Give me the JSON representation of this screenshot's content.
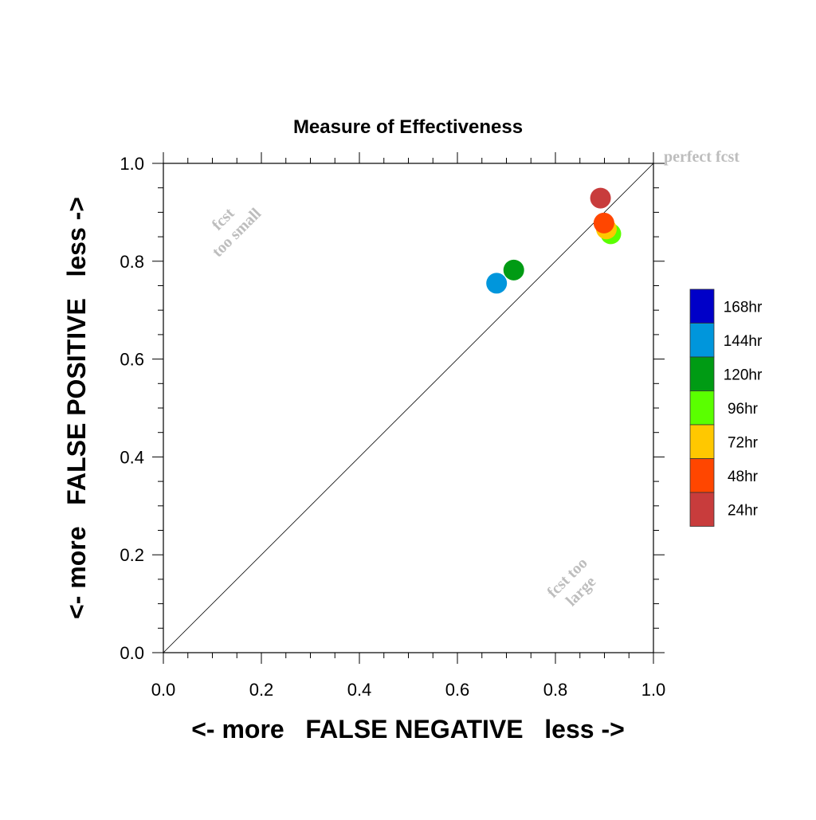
{
  "chart_data": {
    "type": "scatter",
    "title": "Measure of Effectiveness",
    "xlabel": "<- more   FALSE NEGATIVE   less ->",
    "ylabel": "<- more   FALSE POSITIVE   less ->",
    "xlim": [
      0.0,
      1.0
    ],
    "ylim": [
      0.0,
      1.0
    ],
    "xticks": [
      "0.0",
      "0.2",
      "0.4",
      "0.6",
      "0.8",
      "1.0"
    ],
    "yticks": [
      "0.0",
      "0.2",
      "0.4",
      "0.6",
      "0.8",
      "1.0"
    ],
    "grid": false,
    "reference_line": "diagonal",
    "annotations": {
      "perfect": "perfect fcst",
      "small_line1": "fcst",
      "small_line2": "too small",
      "large_line1": "fcst too",
      "large_line2": "large"
    },
    "legend_position": "right",
    "series": [
      {
        "name": "168hr",
        "color": "#0000c8",
        "x": null,
        "y": null
      },
      {
        "name": "144hr",
        "color": "#0096dc",
        "x": 0.68,
        "y": 0.755
      },
      {
        "name": "120hr",
        "color": "#009b14",
        "x": 0.715,
        "y": 0.782
      },
      {
        "name": "96hr",
        "color": "#5aff00",
        "x": 0.913,
        "y": 0.856
      },
      {
        "name": "72hr",
        "color": "#ffc800",
        "x": 0.904,
        "y": 0.866
      },
      {
        "name": "48hr",
        "color": "#ff4600",
        "x": 0.899,
        "y": 0.878
      },
      {
        "name": "24hr",
        "color": "#c83c3c",
        "x": 0.892,
        "y": 0.929
      }
    ]
  }
}
